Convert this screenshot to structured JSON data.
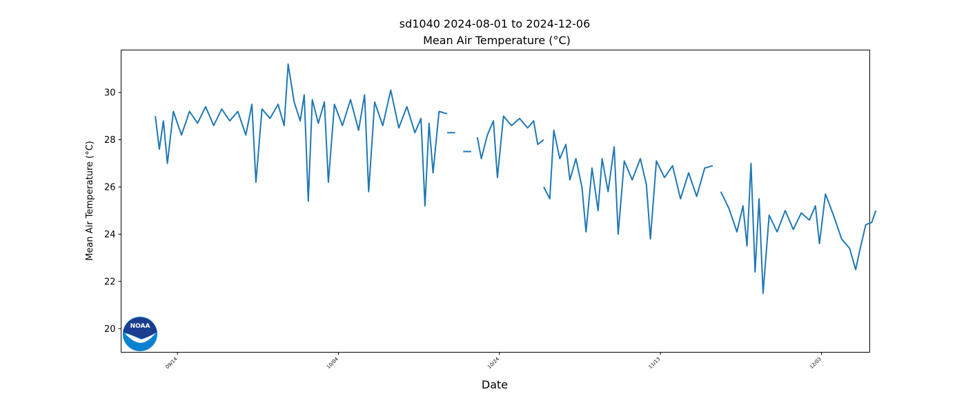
{
  "chart_data": {
    "type": "line",
    "title": "sd1040 2024-08-01 to 2024-12-06",
    "subtitle": "Mean Air Temperature (°C)",
    "xlabel": "Date",
    "ylabel": "Mean Air Temperature (°C)",
    "xlim": [
      "2024-09-07",
      "2024-12-09"
    ],
    "ylim": [
      19.0,
      31.8
    ],
    "x_ticks": [
      "09/14",
      "10/04",
      "10/24",
      "11/13",
      "12/03"
    ],
    "y_ticks": [
      20,
      22,
      24,
      26,
      28,
      30
    ],
    "grid": false,
    "legend": "none",
    "series_color": "#1f77b4",
    "series": [
      {
        "segments": [
          [
            [
              "2024-09-11",
              29.0
            ],
            [
              "2024-09-11",
              27.6
            ],
            [
              "2024-09-12",
              28.8
            ],
            [
              "2024-09-12",
              27.0
            ],
            [
              "2024-09-13",
              29.2
            ],
            [
              "2024-09-14",
              28.2
            ],
            [
              "2024-09-15",
              29.2
            ],
            [
              "2024-09-16",
              28.7
            ],
            [
              "2024-09-17",
              29.4
            ],
            [
              "2024-09-18",
              28.6
            ],
            [
              "2024-09-19",
              29.3
            ],
            [
              "2024-09-20",
              28.8
            ],
            [
              "2024-09-21",
              29.2
            ],
            [
              "2024-09-22",
              28.2
            ],
            [
              "2024-09-23",
              29.5
            ],
            [
              "2024-09-23",
              26.2
            ],
            [
              "2024-09-24",
              29.3
            ],
            [
              "2024-09-25",
              28.9
            ],
            [
              "2024-09-26",
              29.5
            ],
            [
              "2024-09-27",
              28.6
            ],
            [
              "2024-09-27",
              31.2
            ],
            [
              "2024-09-28",
              29.6
            ],
            [
              "2024-09-29",
              28.8
            ],
            [
              "2024-09-29",
              29.9
            ],
            [
              "2024-09-30",
              25.4
            ],
            [
              "2024-09-30",
              29.7
            ],
            [
              "2024-10-01",
              28.7
            ],
            [
              "2024-10-02",
              29.6
            ],
            [
              "2024-10-02",
              26.2
            ],
            [
              "2024-10-03",
              29.5
            ],
            [
              "2024-10-04",
              28.6
            ],
            [
              "2024-10-05",
              29.7
            ],
            [
              "2024-10-06",
              28.4
            ],
            [
              "2024-10-07",
              29.9
            ],
            [
              "2024-10-07",
              25.8
            ],
            [
              "2024-10-08",
              29.6
            ],
            [
              "2024-10-09",
              28.6
            ],
            [
              "2024-10-10",
              30.1
            ],
            [
              "2024-10-11",
              28.5
            ],
            [
              "2024-10-12",
              29.4
            ],
            [
              "2024-10-13",
              28.3
            ],
            [
              "2024-10-14",
              28.9
            ],
            [
              "2024-10-14",
              25.2
            ],
            [
              "2024-10-15",
              28.7
            ],
            [
              "2024-10-15",
              26.6
            ],
            [
              "2024-10-16",
              29.2
            ],
            [
              "2024-10-17",
              29.1
            ]
          ],
          [
            [
              "2024-10-17",
              28.3
            ],
            [
              "2024-10-18",
              28.3
            ]
          ],
          [
            [
              "2024-10-19",
              27.5
            ],
            [
              "2024-10-20",
              27.5
            ]
          ],
          [
            [
              "2024-10-21",
              28.1
            ],
            [
              "2024-10-21",
              27.2
            ],
            [
              "2024-10-22",
              28.2
            ],
            [
              "2024-10-23",
              28.8
            ],
            [
              "2024-10-23",
              26.4
            ],
            [
              "2024-10-24",
              29.0
            ],
            [
              "2024-10-25",
              28.6
            ],
            [
              "2024-10-26",
              28.9
            ],
            [
              "2024-10-27",
              28.5
            ],
            [
              "2024-10-28",
              28.8
            ],
            [
              "2024-10-28",
              27.8
            ],
            [
              "2024-10-29",
              28.0
            ]
          ],
          [
            [
              "2024-10-29",
              26.0
            ],
            [
              "2024-10-30",
              25.5
            ],
            [
              "2024-10-30",
              28.4
            ],
            [
              "2024-10-31",
              27.2
            ],
            [
              "2024-11-01",
              27.8
            ],
            [
              "2024-11-01",
              26.3
            ],
            [
              "2024-11-02",
              27.2
            ],
            [
              "2024-11-03",
              26.0
            ],
            [
              "2024-11-03",
              24.1
            ],
            [
              "2024-11-04",
              26.8
            ],
            [
              "2024-11-05",
              25.0
            ],
            [
              "2024-11-05",
              27.2
            ],
            [
              "2024-11-06",
              25.8
            ],
            [
              "2024-11-07",
              27.7
            ],
            [
              "2024-11-07",
              24.0
            ],
            [
              "2024-11-08",
              27.1
            ],
            [
              "2024-11-09",
              26.3
            ],
            [
              "2024-11-10",
              27.2
            ],
            [
              "2024-11-11",
              26.1
            ],
            [
              "2024-11-11",
              23.8
            ],
            [
              "2024-11-12",
              27.1
            ],
            [
              "2024-11-13",
              26.4
            ],
            [
              "2024-11-14",
              26.9
            ],
            [
              "2024-11-15",
              25.5
            ],
            [
              "2024-11-16",
              26.6
            ],
            [
              "2024-11-17",
              25.6
            ],
            [
              "2024-11-18",
              26.8
            ],
            [
              "2024-11-19",
              26.9
            ]
          ],
          [
            [
              "2024-11-20",
              25.8
            ],
            [
              "2024-11-21",
              25.1
            ],
            [
              "2024-11-22",
              24.1
            ],
            [
              "2024-11-23",
              25.2
            ],
            [
              "2024-11-23",
              23.5
            ],
            [
              "2024-11-24",
              27.0
            ],
            [
              "2024-11-24",
              22.4
            ],
            [
              "2024-11-25",
              25.5
            ],
            [
              "2024-11-25",
              21.5
            ],
            [
              "2024-11-26",
              24.8
            ],
            [
              "2024-11-27",
              24.1
            ],
            [
              "2024-11-28",
              25.0
            ],
            [
              "2024-11-29",
              24.2
            ],
            [
              "2024-11-30",
              24.9
            ],
            [
              "2024-12-01",
              24.6
            ],
            [
              "2024-12-02",
              25.2
            ],
            [
              "2024-12-02",
              23.6
            ],
            [
              "2024-12-03",
              25.7
            ],
            [
              "2024-12-04",
              24.8
            ],
            [
              "2024-12-05",
              23.8
            ],
            [
              "2024-12-06",
              23.4
            ],
            [
              "2024-12-07",
              22.5
            ],
            [
              "2024-12-07",
              23.3
            ],
            [
              "2024-12-08",
              24.4
            ],
            [
              "2024-12-09",
              24.5
            ],
            [
              "2024-12-09",
              25.0
            ]
          ]
        ]
      }
    ]
  }
}
